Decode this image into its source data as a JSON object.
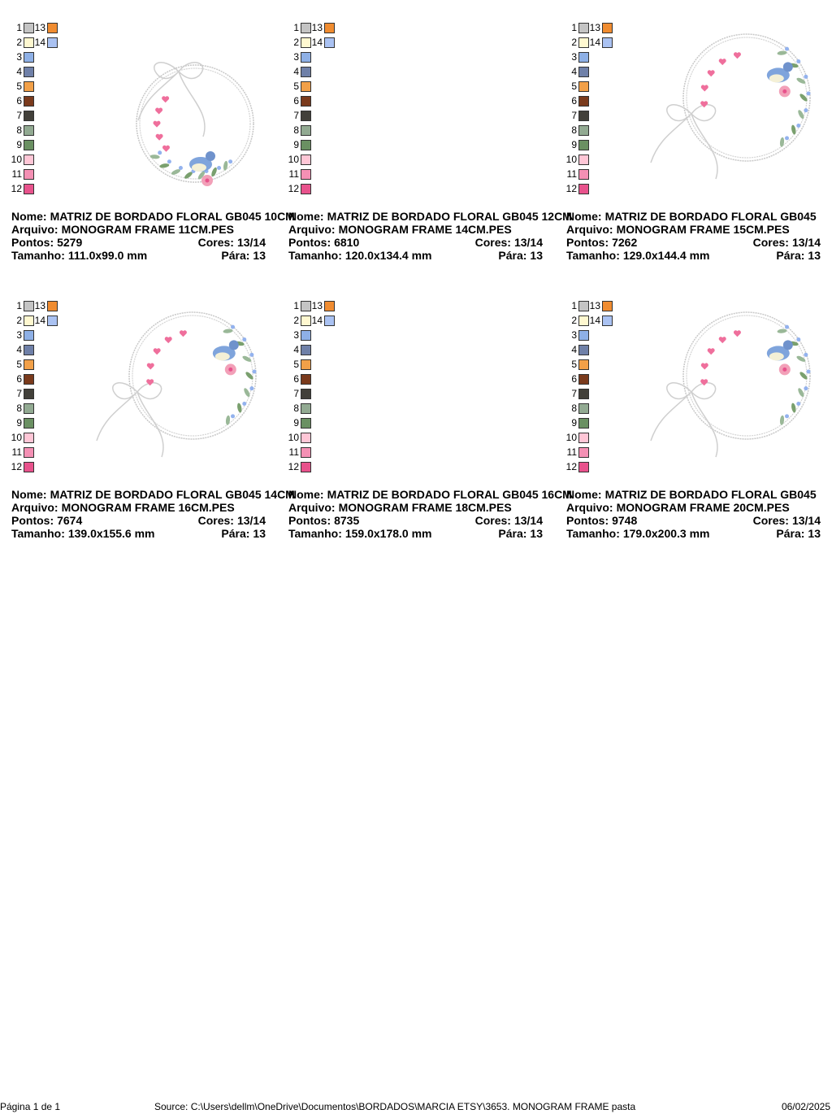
{
  "labels": {
    "name": "Nome:",
    "file": "Arquivo:",
    "stitches": "Pontos:",
    "colors": "Cores:",
    "size": "Tamanho:",
    "stops": "Pára:"
  },
  "palette": [
    {
      "number": "1",
      "color": "#c4c4c4"
    },
    {
      "number": "2",
      "color": "#fff8d0"
    },
    {
      "number": "3",
      "color": "#8eb0e6"
    },
    {
      "number": "4",
      "color": "#6f80a8"
    },
    {
      "number": "5",
      "color": "#f2a048"
    },
    {
      "number": "6",
      "color": "#7a3a1c"
    },
    {
      "number": "7",
      "color": "#42403a"
    },
    {
      "number": "8",
      "color": "#92aa92"
    },
    {
      "number": "9",
      "color": "#6a9062"
    },
    {
      "number": "10",
      "color": "#ffc6d6"
    },
    {
      "number": "11",
      "color": "#f490b4"
    },
    {
      "number": "12",
      "color": "#e8528c"
    },
    {
      "number": "13",
      "color": "#f08c30"
    },
    {
      "number": "14",
      "color": "#aac2f2"
    }
  ],
  "designs": [
    {
      "name": "MATRIZ DE BORDADO FLORAL GB045 10CM",
      "file": "MONOGRAM FRAME 11CM.PES",
      "stitches": "5279",
      "colors": "13/14",
      "size": "111.0x99.0 mm",
      "stops": "13"
    },
    {
      "name": "MATRIZ DE BORDADO FLORAL GB045 12CM",
      "file": "MONOGRAM FRAME 14CM.PES",
      "stitches": "6810",
      "colors": "13/14",
      "size": "120.0x134.4 mm",
      "stops": "13"
    },
    {
      "name": "MATRIZ DE BORDADO FLORAL GB045",
      "file": "MONOGRAM FRAME 15CM.PES",
      "stitches": "7262",
      "colors": "13/14",
      "size": "129.0x144.4 mm",
      "stops": "13"
    },
    {
      "name": "MATRIZ DE BORDADO FLORAL GB045 14CM",
      "file": "MONOGRAM FRAME 16CM.PES",
      "stitches": "7674",
      "colors": "13/14",
      "size": "139.0x155.6 mm",
      "stops": "13"
    },
    {
      "name": "MATRIZ DE BORDADO FLORAL GB045 16CM",
      "file": "MONOGRAM FRAME 18CM.PES",
      "stitches": "8735",
      "colors": "13/14",
      "size": "159.0x178.0 mm",
      "stops": "13"
    },
    {
      "name": "MATRIZ DE BORDADO FLORAL GB045",
      "file": "MONOGRAM FRAME 20CM.PES",
      "stitches": "9748",
      "colors": "13/14",
      "size": "179.0x200.3 mm",
      "stops": "13"
    }
  ],
  "footer": {
    "page": "Página 1 de 1",
    "source": "Source: C:\\Users\\dellm\\OneDrive\\Documentos\\BORDADOS\\MARCIA ETSY\\3653. MONOGRAM FRAME pasta",
    "date": "06/02/2025"
  }
}
